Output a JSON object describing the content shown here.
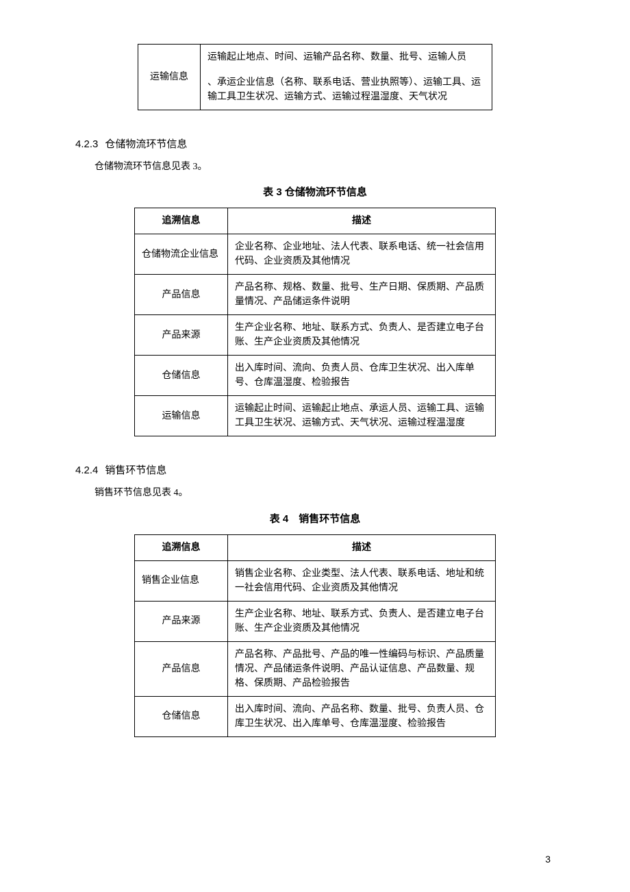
{
  "topTable": {
    "label": "运输信息",
    "row1": "运输起止地点、时间、运输产品名称、数量、批号、运输人员",
    "row2": "、承运企业信息（名称、联系电话、营业执照等）、运输工具、运输工具卫生状况、运输方式、运输过程温湿度、天气状况"
  },
  "section423": {
    "num": "4.2.3",
    "title": "仓储物流环节信息",
    "intro": "仓储物流环节信息见表 3。",
    "caption": "表 3 仓储物流环节信息",
    "headers": {
      "c1": "追溯信息",
      "c2": "描述"
    },
    "rows": [
      {
        "label": "仓储物流企业信息",
        "desc": "企业名称、企业地址、法人代表、联系电话、统一社会信用代码、企业资质及其他情况"
      },
      {
        "label": "产品信息",
        "desc": "产品名称、规格、数量、批号、生产日期、保质期、产品质量情况、产品储运条件说明"
      },
      {
        "label": "产品来源",
        "desc": "生产企业名称、地址、联系方式、负责人、是否建立电子台账、生产企业资质及其他情况"
      },
      {
        "label": "仓储信息",
        "desc": "出入库时间、流向、负责人员、仓库卫生状况、出入库单号、仓库温湿度、检验报告"
      },
      {
        "label": "运输信息",
        "desc": "运输起止时间、运输起止地点、承运人员、运输工具、运输工具卫生状况、运输方式、天气状况、运输过程温湿度"
      }
    ]
  },
  "section424": {
    "num": "4.2.4",
    "title": "销售环节信息",
    "intro": "销售环节信息见表 4。",
    "caption": "表 4　销售环节信息",
    "headers": {
      "c1": "追溯信息",
      "c2": "描述"
    },
    "rows": [
      {
        "label": "销售企业信息",
        "desc": "销售企业名称、企业类型、法人代表、联系电话、地址和统一社会信用代码、企业资质及其他情况"
      },
      {
        "label": "产品来源",
        "desc": "生产企业名称、地址、联系方式、负责人、是否建立电子台账、生产企业资质及其他情况"
      },
      {
        "label": "产品信息",
        "desc": "产品名称、产品批号、产品的唯一性编码与标识、产品质量情况、产品储运条件说明、产品认证信息、产品数量、规格、保质期、产品检验报告"
      },
      {
        "label": "仓储信息",
        "desc": "出入库时间、流向、产品名称、数量、批号、负责人员、仓库卫生状况、出入库单号、仓库温湿度、检验报告"
      }
    ]
  },
  "pageNum": "3",
  "colors": {
    "text": "#000000",
    "border": "#000000",
    "background": "#ffffff"
  },
  "fonts": {
    "body": "SimSun",
    "heading": "SimHei",
    "bodySizePt": 10.5,
    "headingSizePt": 11
  }
}
